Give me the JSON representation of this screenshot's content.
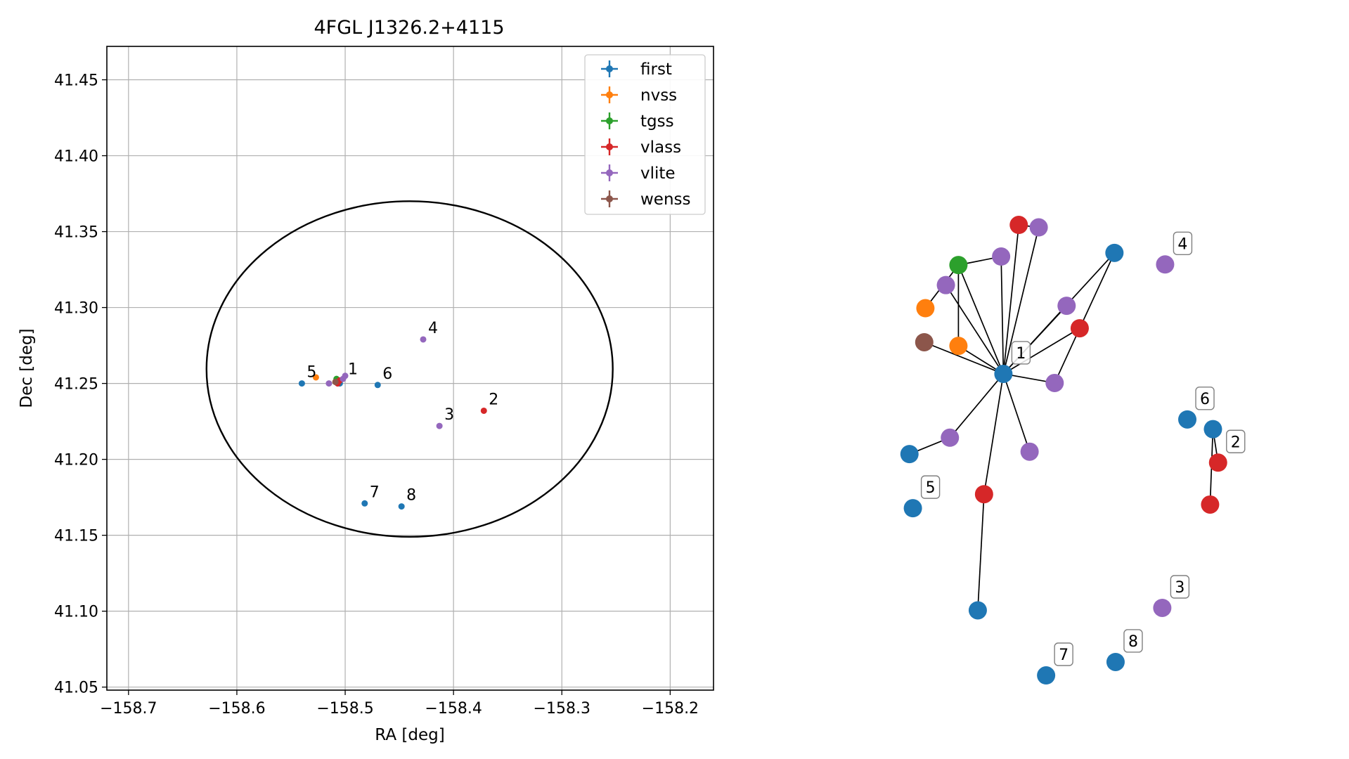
{
  "chart_data": [
    {
      "type": "scatter",
      "title": "4FGL J1326.2+4115",
      "xlabel": "RA [deg]",
      "ylabel": "Dec [deg]",
      "xlim": [
        -158.72,
        -158.16
      ],
      "ylim": [
        41.048,
        41.472
      ],
      "xticks": [
        -158.7,
        -158.6,
        -158.5,
        -158.4,
        -158.3,
        -158.2
      ],
      "xtick_labels": [
        "−158.7",
        "−158.6",
        "−158.5",
        "−158.4",
        "−158.3",
        "−158.2"
      ],
      "yticks": [
        41.05,
        41.1,
        41.15,
        41.2,
        41.25,
        41.3,
        41.35,
        41.4,
        41.45
      ],
      "ytick_labels": [
        "41.05",
        "41.10",
        "41.15",
        "41.20",
        "41.25",
        "41.30",
        "41.35",
        "41.40",
        "41.45"
      ],
      "grid": true,
      "legend_position": "top-right",
      "ellipse": {
        "center_x": -158.4405,
        "center_y": 41.2595,
        "semi_axis_x": 0.1875,
        "semi_axis_y": 0.1105,
        "color": "#000000"
      },
      "series": [
        {
          "name": "first",
          "color": "#1f77b4",
          "points": [
            {
              "x": -158.505,
              "y": 41.25
            },
            {
              "x": -158.54,
              "y": 41.25
            },
            {
              "x": -158.47,
              "y": 41.249
            },
            {
              "x": -158.482,
              "y": 41.171
            },
            {
              "x": -158.448,
              "y": 41.169
            }
          ]
        },
        {
          "name": "nvss",
          "color": "#ff7f0e",
          "points": [
            {
              "x": -158.527,
              "y": 41.254
            },
            {
              "x": -158.509,
              "y": 41.251
            }
          ]
        },
        {
          "name": "tgss",
          "color": "#2ca02c",
          "points": [
            {
              "x": -158.508,
              "y": 41.253
            }
          ]
        },
        {
          "name": "vlass",
          "color": "#d62728",
          "points": [
            {
              "x": -158.507,
              "y": 41.25
            },
            {
              "x": -158.505,
              "y": 41.252
            },
            {
              "x": -158.372,
              "y": 41.232
            }
          ]
        },
        {
          "name": "vlite",
          "color": "#9467bd",
          "points": [
            {
              "x": -158.515,
              "y": 41.25
            },
            {
              "x": -158.502,
              "y": 41.253
            },
            {
              "x": -158.428,
              "y": 41.279
            },
            {
              "x": -158.413,
              "y": 41.222
            },
            {
              "x": -158.5,
              "y": 41.255
            }
          ]
        },
        {
          "name": "wenss",
          "color": "#8c564b",
          "points": [
            {
              "x": -158.509,
              "y": 41.251
            }
          ]
        }
      ],
      "labels": [
        {
          "text": "1",
          "x": -158.502,
          "y": 41.252
        },
        {
          "text": "2",
          "x": -158.372,
          "y": 41.232
        },
        {
          "text": "3",
          "x": -158.413,
          "y": 41.222
        },
        {
          "text": "4",
          "x": -158.428,
          "y": 41.279
        },
        {
          "text": "5",
          "x": -158.54,
          "y": 41.25
        },
        {
          "text": "6",
          "x": -158.47,
          "y": 41.249
        },
        {
          "text": "7",
          "x": -158.482,
          "y": 41.171
        },
        {
          "text": "8",
          "x": -158.448,
          "y": 41.169
        }
      ]
    },
    {
      "type": "network",
      "title": "",
      "series_colors": {
        "first": "#1f77b4",
        "nvss": "#ff7f0e",
        "tgss": "#2ca02c",
        "vlass": "#d62728",
        "vlite": "#9467bd",
        "wenss": "#8c564b"
      },
      "node_label_box": {
        "fill": "#ffffff",
        "stroke": "#808080"
      },
      "nodes": [
        {
          "id": "hub",
          "series": "first",
          "x": 0.398,
          "y": 0.378,
          "label": "1"
        },
        {
          "id": "red_top",
          "series": "vlass",
          "x": 0.425,
          "y": 0.133
        },
        {
          "id": "purple_top",
          "series": "vlite",
          "x": 0.46,
          "y": 0.137
        },
        {
          "id": "purple_mid",
          "series": "vlite",
          "x": 0.394,
          "y": 0.185
        },
        {
          "id": "green",
          "series": "tgss",
          "x": 0.319,
          "y": 0.199
        },
        {
          "id": "purple_left",
          "series": "vlite",
          "x": 0.297,
          "y": 0.232
        },
        {
          "id": "orange_left",
          "series": "nvss",
          "x": 0.261,
          "y": 0.27
        },
        {
          "id": "brown",
          "series": "wenss",
          "x": 0.259,
          "y": 0.326
        },
        {
          "id": "orange_mid",
          "series": "nvss",
          "x": 0.319,
          "y": 0.332
        },
        {
          "id": "blue_right",
          "series": "first",
          "x": 0.593,
          "y": 0.179
        },
        {
          "id": "purple_right",
          "series": "vlite",
          "x": 0.509,
          "y": 0.266
        },
        {
          "id": "red_right",
          "series": "vlass",
          "x": 0.532,
          "y": 0.303
        },
        {
          "id": "purple_low",
          "series": "vlite",
          "x": 0.488,
          "y": 0.393
        },
        {
          "id": "purple_bl",
          "series": "vlite",
          "x": 0.304,
          "y": 0.483
        },
        {
          "id": "blue_left",
          "series": "first",
          "x": 0.233,
          "y": 0.51
        },
        {
          "id": "purple_bm",
          "series": "vlite",
          "x": 0.444,
          "y": 0.506
        },
        {
          "id": "red_low",
          "series": "vlass",
          "x": 0.364,
          "y": 0.576
        },
        {
          "id": "blue_low",
          "series": "first",
          "x": 0.353,
          "y": 0.767
        },
        {
          "id": "n4",
          "series": "vlite",
          "x": 0.682,
          "y": 0.198,
          "label": "4"
        },
        {
          "id": "n6",
          "series": "first",
          "x": 0.721,
          "y": 0.453,
          "label": "6"
        },
        {
          "id": "n6b",
          "series": "first",
          "x": 0.766,
          "y": 0.469
        },
        {
          "id": "n2",
          "series": "vlass",
          "x": 0.775,
          "y": 0.524,
          "label": "2"
        },
        {
          "id": "n2b",
          "series": "vlass",
          "x": 0.761,
          "y": 0.593
        },
        {
          "id": "n5",
          "series": "first",
          "x": 0.239,
          "y": 0.599,
          "label": "5"
        },
        {
          "id": "n3",
          "series": "vlite",
          "x": 0.677,
          "y": 0.763,
          "label": "3"
        },
        {
          "id": "n7",
          "series": "first",
          "x": 0.473,
          "y": 0.874,
          "label": "7"
        },
        {
          "id": "n8",
          "series": "first",
          "x": 0.595,
          "y": 0.852,
          "label": "8"
        }
      ],
      "edges": [
        [
          "hub",
          "red_top"
        ],
        [
          "hub",
          "purple_mid"
        ],
        [
          "hub",
          "green"
        ],
        [
          "hub",
          "purple_left"
        ],
        [
          "hub",
          "brown"
        ],
        [
          "hub",
          "orange_mid"
        ],
        [
          "hub",
          "blue_right"
        ],
        [
          "hub",
          "purple_right"
        ],
        [
          "hub",
          "red_right"
        ],
        [
          "hub",
          "purple_low"
        ],
        [
          "hub",
          "purple_bl"
        ],
        [
          "hub",
          "purple_bm"
        ],
        [
          "hub",
          "red_low"
        ],
        [
          "hub",
          "purple_top"
        ],
        [
          "red_top",
          "purple_top"
        ],
        [
          "green",
          "purple_mid"
        ],
        [
          "green",
          "orange_left"
        ],
        [
          "green",
          "orange_mid"
        ],
        [
          "blue_right",
          "red_right"
        ],
        [
          "red_right",
          "purple_low"
        ],
        [
          "purple_bl",
          "blue_left"
        ],
        [
          "red_low",
          "blue_low"
        ],
        [
          "n6b",
          "n2"
        ],
        [
          "n6b",
          "n2b"
        ]
      ]
    }
  ]
}
